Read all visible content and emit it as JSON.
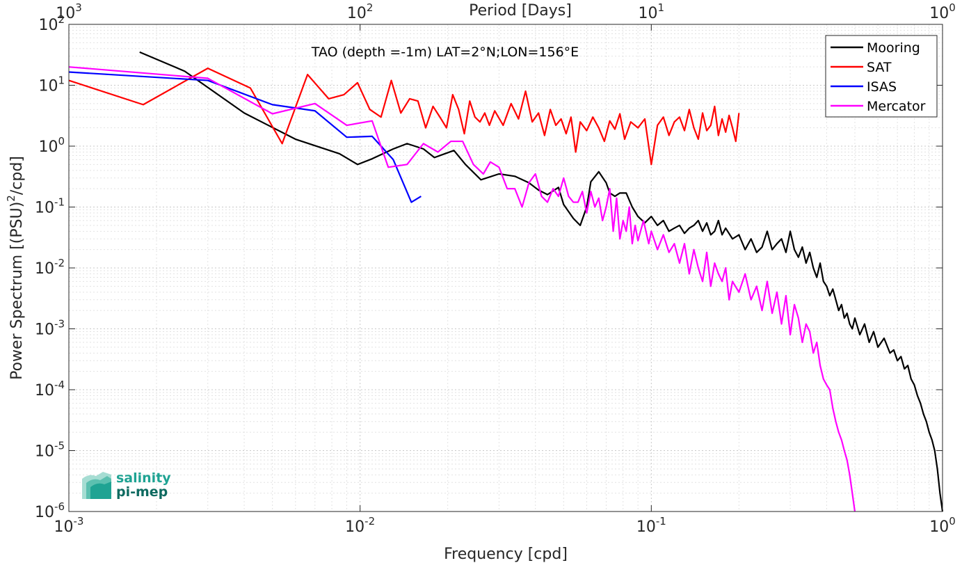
{
  "chart_data": {
    "type": "line",
    "scale": {
      "x": "log",
      "y": "log"
    },
    "xlabel": "Frequency [cpd]",
    "ylabel_main": "Power Spectrum [(PSU)",
    "ylabel_sup": "2",
    "ylabel_tail": "/cpd]",
    "top_xlabel": "Period [Days]",
    "annotation": "TAO (depth =-1m) LAT=2°N;LON=156°E",
    "xlim": [
      0.001,
      1
    ],
    "ylim": [
      1e-06,
      100
    ],
    "x_ticks": [
      {
        "value": 0.001,
        "base": "10",
        "exp": "-3"
      },
      {
        "value": 0.01,
        "base": "10",
        "exp": "-2"
      },
      {
        "value": 0.1,
        "base": "10",
        "exp": "-1"
      },
      {
        "value": 1,
        "base": "10",
        "exp": "0"
      }
    ],
    "y_ticks": [
      {
        "value": 100,
        "base": "10",
        "exp": "2"
      },
      {
        "value": 10,
        "base": "10",
        "exp": "1"
      },
      {
        "value": 1,
        "base": "10",
        "exp": "0"
      },
      {
        "value": 0.1,
        "base": "10",
        "exp": "-1"
      },
      {
        "value": 0.01,
        "base": "10",
        "exp": "-2"
      },
      {
        "value": 0.001,
        "base": "10",
        "exp": "-3"
      },
      {
        "value": 0.0001,
        "base": "10",
        "exp": "-4"
      },
      {
        "value": 1e-05,
        "base": "10",
        "exp": "-5"
      },
      {
        "value": 1e-06,
        "base": "10",
        "exp": "-6"
      }
    ],
    "top_ticks": [
      {
        "value": 0.001,
        "base": "10",
        "exp": "3"
      },
      {
        "value": 0.01,
        "base": "10",
        "exp": "2"
      },
      {
        "value": 0.1,
        "base": "10",
        "exp": "1"
      },
      {
        "value": 1,
        "base": "10",
        "exp": "0"
      }
    ],
    "grid": true,
    "legend_position": "top-right",
    "series": [
      {
        "name": "Mooring",
        "color": "#000000",
        "points": [
          [
            0.00175,
            35
          ],
          [
            0.0025,
            17
          ],
          [
            0.004,
            3.5
          ],
          [
            0.006,
            1.3
          ],
          [
            0.0085,
            0.75
          ],
          [
            0.0098,
            0.5
          ],
          [
            0.011,
            0.62
          ],
          [
            0.013,
            0.9
          ],
          [
            0.0145,
            1.1
          ],
          [
            0.0165,
            0.9
          ],
          [
            0.018,
            0.65
          ],
          [
            0.021,
            0.85
          ],
          [
            0.023,
            0.5
          ],
          [
            0.026,
            0.28
          ],
          [
            0.03,
            0.35
          ],
          [
            0.034,
            0.32
          ],
          [
            0.038,
            0.25
          ],
          [
            0.041,
            0.19
          ],
          [
            0.044,
            0.16
          ],
          [
            0.048,
            0.21
          ],
          [
            0.05,
            0.11
          ],
          [
            0.054,
            0.065
          ],
          [
            0.057,
            0.05
          ],
          [
            0.06,
            0.1
          ],
          [
            0.062,
            0.26
          ],
          [
            0.066,
            0.38
          ],
          [
            0.07,
            0.25
          ],
          [
            0.072,
            0.17
          ],
          [
            0.075,
            0.15
          ],
          [
            0.078,
            0.17
          ],
          [
            0.082,
            0.17
          ],
          [
            0.086,
            0.1
          ],
          [
            0.09,
            0.07
          ],
          [
            0.095,
            0.055
          ],
          [
            0.1,
            0.07
          ],
          [
            0.105,
            0.05
          ],
          [
            0.11,
            0.06
          ],
          [
            0.115,
            0.04
          ],
          [
            0.12,
            0.045
          ],
          [
            0.125,
            0.05
          ],
          [
            0.13,
            0.037
          ],
          [
            0.135,
            0.045
          ],
          [
            0.14,
            0.05
          ],
          [
            0.145,
            0.06
          ],
          [
            0.15,
            0.04
          ],
          [
            0.155,
            0.055
          ],
          [
            0.16,
            0.035
          ],
          [
            0.165,
            0.04
          ],
          [
            0.17,
            0.06
          ],
          [
            0.175,
            0.035
          ],
          [
            0.18,
            0.045
          ],
          [
            0.19,
            0.03
          ],
          [
            0.2,
            0.035
          ],
          [
            0.21,
            0.02
          ],
          [
            0.22,
            0.03
          ],
          [
            0.23,
            0.018
          ],
          [
            0.24,
            0.022
          ],
          [
            0.25,
            0.04
          ],
          [
            0.26,
            0.02
          ],
          [
            0.27,
            0.025
          ],
          [
            0.28,
            0.03
          ],
          [
            0.29,
            0.018
          ],
          [
            0.3,
            0.04
          ],
          [
            0.31,
            0.02
          ],
          [
            0.32,
            0.015
          ],
          [
            0.33,
            0.022
          ],
          [
            0.34,
            0.012
          ],
          [
            0.35,
            0.018
          ],
          [
            0.36,
            0.01
          ],
          [
            0.37,
            0.007
          ],
          [
            0.38,
            0.012
          ],
          [
            0.39,
            0.006
          ],
          [
            0.4,
            0.005
          ],
          [
            0.41,
            0.0035
          ],
          [
            0.42,
            0.0045
          ],
          [
            0.43,
            0.003
          ],
          [
            0.44,
            0.002
          ],
          [
            0.45,
            0.0025
          ],
          [
            0.46,
            0.0015
          ],
          [
            0.47,
            0.0018
          ],
          [
            0.48,
            0.0012
          ],
          [
            0.49,
            0.001
          ],
          [
            0.5,
            0.0015
          ],
          [
            0.52,
            0.0008
          ],
          [
            0.54,
            0.0012
          ],
          [
            0.56,
            0.0006
          ],
          [
            0.58,
            0.0009
          ],
          [
            0.6,
            0.0005
          ],
          [
            0.63,
            0.0007
          ],
          [
            0.66,
            0.0004
          ],
          [
            0.68,
            0.00045
          ],
          [
            0.7,
            0.0003
          ],
          [
            0.72,
            0.00035
          ],
          [
            0.74,
            0.00022
          ],
          [
            0.76,
            0.00025
          ],
          [
            0.78,
            0.00015
          ],
          [
            0.8,
            0.00012
          ],
          [
            0.82,
            8e-05
          ],
          [
            0.84,
            6e-05
          ],
          [
            0.86,
            4e-05
          ],
          [
            0.88,
            3e-05
          ],
          [
            0.9,
            2e-05
          ],
          [
            0.92,
            1.5e-05
          ],
          [
            0.94,
            1e-05
          ],
          [
            0.96,
            5e-06
          ],
          [
            0.98,
            2e-06
          ],
          [
            1.0,
            1e-06
          ]
        ]
      },
      {
        "name": "SAT",
        "color": "#ff0000",
        "points": [
          [
            0.001,
            12
          ],
          [
            0.0018,
            4.8
          ],
          [
            0.003,
            19
          ],
          [
            0.0042,
            9
          ],
          [
            0.0054,
            1.1
          ],
          [
            0.0066,
            15
          ],
          [
            0.0078,
            6
          ],
          [
            0.0088,
            7
          ],
          [
            0.0098,
            11
          ],
          [
            0.0108,
            4
          ],
          [
            0.0118,
            3
          ],
          [
            0.0128,
            12
          ],
          [
            0.0138,
            3.5
          ],
          [
            0.0148,
            6
          ],
          [
            0.0158,
            5.5
          ],
          [
            0.0168,
            2
          ],
          [
            0.0178,
            4.5
          ],
          [
            0.0188,
            3
          ],
          [
            0.0198,
            2
          ],
          [
            0.0208,
            7
          ],
          [
            0.0218,
            4
          ],
          [
            0.0228,
            1.6
          ],
          [
            0.0238,
            5.5
          ],
          [
            0.0248,
            3
          ],
          [
            0.0258,
            2.5
          ],
          [
            0.0268,
            3.5
          ],
          [
            0.0278,
            2.2
          ],
          [
            0.029,
            3.8
          ],
          [
            0.031,
            2.2
          ],
          [
            0.033,
            5
          ],
          [
            0.035,
            2.8
          ],
          [
            0.037,
            8
          ],
          [
            0.039,
            2.5
          ],
          [
            0.041,
            3.5
          ],
          [
            0.043,
            1.5
          ],
          [
            0.045,
            4
          ],
          [
            0.047,
            2.2
          ],
          [
            0.049,
            2.8
          ],
          [
            0.051,
            1.6
          ],
          [
            0.053,
            3
          ],
          [
            0.055,
            0.8
          ],
          [
            0.057,
            2.5
          ],
          [
            0.06,
            1.8
          ],
          [
            0.063,
            3
          ],
          [
            0.066,
            2
          ],
          [
            0.069,
            1.2
          ],
          [
            0.072,
            2.6
          ],
          [
            0.075,
            1.9
          ],
          [
            0.078,
            3.4
          ],
          [
            0.081,
            1.3
          ],
          [
            0.085,
            2.5
          ],
          [
            0.09,
            2
          ],
          [
            0.095,
            2.8
          ],
          [
            0.1,
            0.5
          ],
          [
            0.105,
            2.2
          ],
          [
            0.11,
            3
          ],
          [
            0.115,
            1.5
          ],
          [
            0.12,
            2.5
          ],
          [
            0.125,
            3
          ],
          [
            0.13,
            1.8
          ],
          [
            0.135,
            4
          ],
          [
            0.14,
            2
          ],
          [
            0.145,
            1.3
          ],
          [
            0.15,
            3.5
          ],
          [
            0.155,
            1.8
          ],
          [
            0.16,
            2.2
          ],
          [
            0.165,
            4.5
          ],
          [
            0.17,
            1.5
          ],
          [
            0.175,
            2.8
          ],
          [
            0.18,
            1.7
          ],
          [
            0.185,
            3.2
          ],
          [
            0.19,
            2
          ],
          [
            0.195,
            1.2
          ],
          [
            0.2,
            3.5
          ]
        ]
      },
      {
        "name": "ISAS",
        "color": "#0000ff",
        "points": [
          [
            0.001,
            16.5
          ],
          [
            0.003,
            12
          ],
          [
            0.005,
            4.8
          ],
          [
            0.007,
            3.8
          ],
          [
            0.009,
            1.4
          ],
          [
            0.011,
            1.45
          ],
          [
            0.013,
            0.6
          ],
          [
            0.015,
            0.12
          ],
          [
            0.0162,
            0.15
          ]
        ]
      },
      {
        "name": "Mercator",
        "color": "#ff00ff",
        "points": [
          [
            0.001,
            20
          ],
          [
            0.003,
            13
          ],
          [
            0.005,
            3.4
          ],
          [
            0.007,
            5
          ],
          [
            0.009,
            2.2
          ],
          [
            0.011,
            2.6
          ],
          [
            0.0125,
            0.45
          ],
          [
            0.0145,
            0.5
          ],
          [
            0.0165,
            1.1
          ],
          [
            0.0185,
            0.8
          ],
          [
            0.0205,
            1.2
          ],
          [
            0.0225,
            1.2
          ],
          [
            0.0245,
            0.5
          ],
          [
            0.0265,
            0.35
          ],
          [
            0.028,
            0.55
          ],
          [
            0.03,
            0.45
          ],
          [
            0.032,
            0.2
          ],
          [
            0.034,
            0.2
          ],
          [
            0.036,
            0.1
          ],
          [
            0.038,
            0.25
          ],
          [
            0.04,
            0.35
          ],
          [
            0.042,
            0.15
          ],
          [
            0.044,
            0.12
          ],
          [
            0.046,
            0.2
          ],
          [
            0.048,
            0.15
          ],
          [
            0.05,
            0.3
          ],
          [
            0.052,
            0.15
          ],
          [
            0.054,
            0.12
          ],
          [
            0.056,
            0.12
          ],
          [
            0.058,
            0.18
          ],
          [
            0.06,
            0.08
          ],
          [
            0.062,
            0.18
          ],
          [
            0.064,
            0.1
          ],
          [
            0.066,
            0.14
          ],
          [
            0.068,
            0.06
          ],
          [
            0.07,
            0.1
          ],
          [
            0.072,
            0.2
          ],
          [
            0.074,
            0.04
          ],
          [
            0.076,
            0.14
          ],
          [
            0.078,
            0.03
          ],
          [
            0.08,
            0.06
          ],
          [
            0.082,
            0.04
          ],
          [
            0.084,
            0.1
          ],
          [
            0.086,
            0.025
          ],
          [
            0.088,
            0.05
          ],
          [
            0.09,
            0.028
          ],
          [
            0.094,
            0.06
          ],
          [
            0.098,
            0.025
          ],
          [
            0.1,
            0.04
          ],
          [
            0.105,
            0.02
          ],
          [
            0.11,
            0.035
          ],
          [
            0.115,
            0.018
          ],
          [
            0.12,
            0.025
          ],
          [
            0.125,
            0.012
          ],
          [
            0.13,
            0.025
          ],
          [
            0.135,
            0.008
          ],
          [
            0.14,
            0.02
          ],
          [
            0.145,
            0.01
          ],
          [
            0.15,
            0.006
          ],
          [
            0.155,
            0.018
          ],
          [
            0.16,
            0.005
          ],
          [
            0.165,
            0.012
          ],
          [
            0.17,
            0.008
          ],
          [
            0.175,
            0.006
          ],
          [
            0.18,
            0.01
          ],
          [
            0.185,
            0.003
          ],
          [
            0.19,
            0.006
          ],
          [
            0.2,
            0.004
          ],
          [
            0.21,
            0.008
          ],
          [
            0.22,
            0.003
          ],
          [
            0.23,
            0.005
          ],
          [
            0.24,
            0.002
          ],
          [
            0.25,
            0.006
          ],
          [
            0.26,
            0.0018
          ],
          [
            0.27,
            0.004
          ],
          [
            0.28,
            0.0012
          ],
          [
            0.29,
            0.0035
          ],
          [
            0.3,
            0.0008
          ],
          [
            0.31,
            0.0025
          ],
          [
            0.32,
            0.0015
          ],
          [
            0.33,
            0.0006
          ],
          [
            0.34,
            0.0012
          ],
          [
            0.35,
            0.0009
          ],
          [
            0.36,
            0.0004
          ],
          [
            0.37,
            0.0006
          ],
          [
            0.38,
            0.00025
          ],
          [
            0.39,
            0.00015
          ],
          [
            0.4,
            0.00012
          ],
          [
            0.41,
            0.0001
          ],
          [
            0.42,
            5e-05
          ],
          [
            0.43,
            3e-05
          ],
          [
            0.44,
            2e-05
          ],
          [
            0.45,
            1.5e-05
          ],
          [
            0.46,
            1e-05
          ],
          [
            0.47,
            7e-06
          ],
          [
            0.48,
            4e-06
          ],
          [
            0.49,
            2e-06
          ],
          [
            0.5,
            1e-06
          ]
        ]
      }
    ]
  },
  "logo": {
    "line1": "salinity",
    "line2": "pi-mep",
    "color1": "#1fa393",
    "color2": "#0e6a60"
  }
}
